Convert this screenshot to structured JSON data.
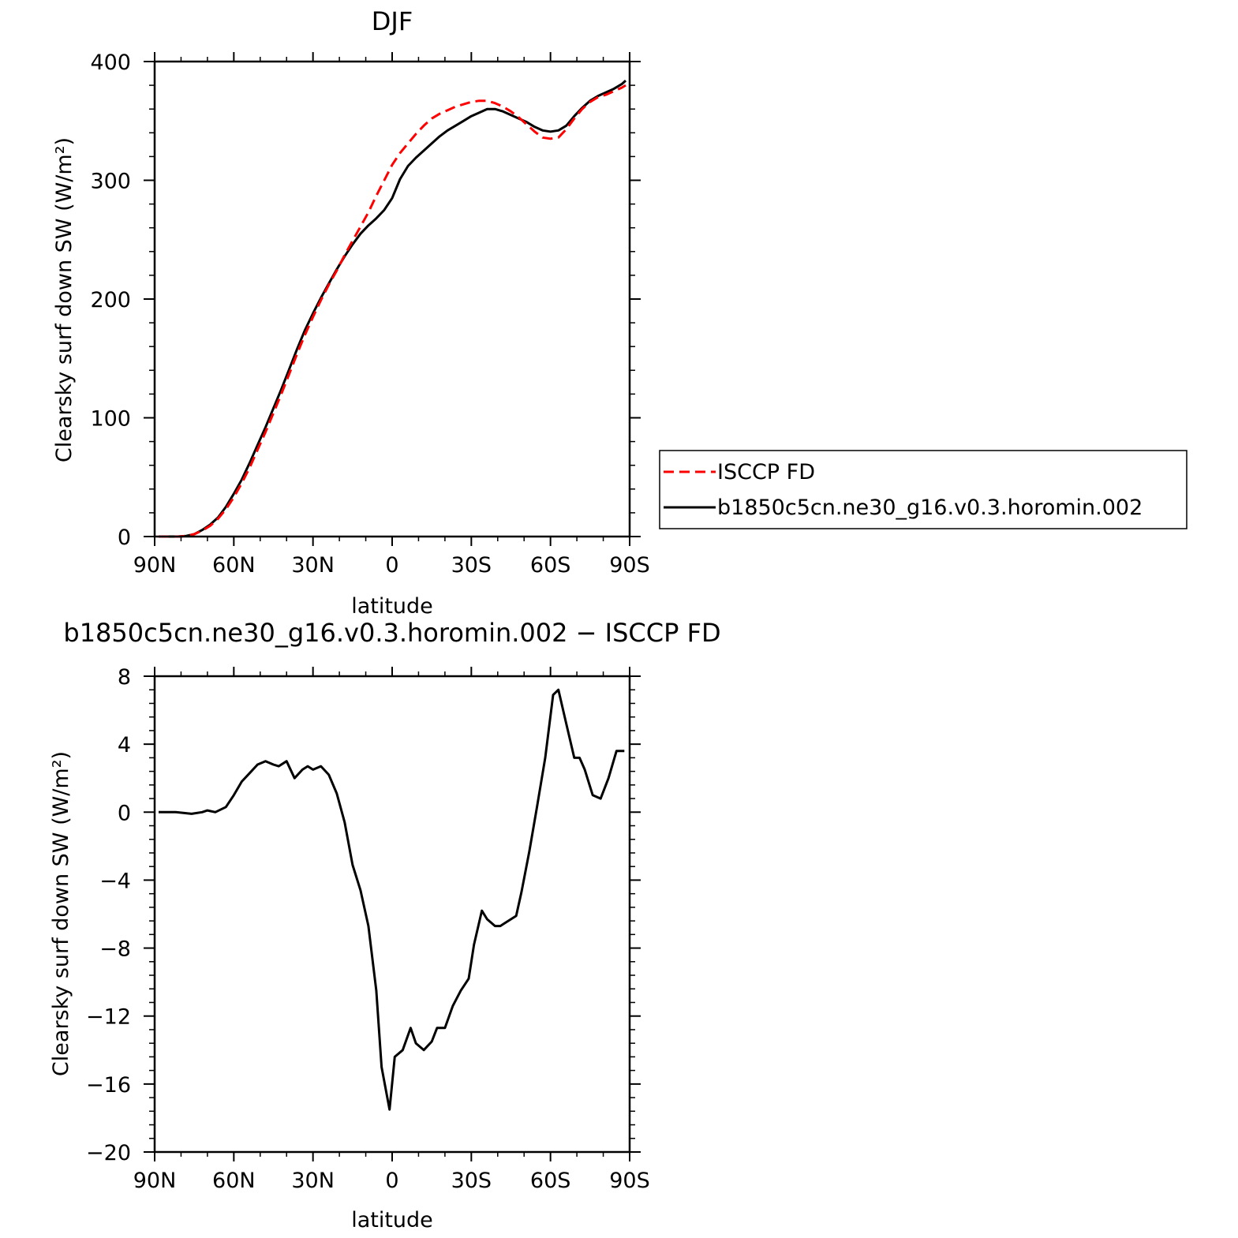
{
  "chart_data": [
    {
      "type": "line",
      "title": "DJF",
      "xlabel": "latitude",
      "ylabel": "Clearsky surf down SW (W/m²)",
      "xlim": [
        90,
        -90
      ],
      "ylim": [
        0,
        400
      ],
      "x_ticks": [
        {
          "value": 90,
          "label": "90N"
        },
        {
          "value": 60,
          "label": "60N"
        },
        {
          "value": 30,
          "label": "30N"
        },
        {
          "value": 0,
          "label": "0"
        },
        {
          "value": -30,
          "label": "30S"
        },
        {
          "value": -60,
          "label": "60S"
        },
        {
          "value": -90,
          "label": "90S"
        }
      ],
      "y_ticks": [
        0,
        100,
        200,
        300,
        400
      ],
      "legend": "right, outside",
      "series": [
        {
          "name": "ISCCP FD",
          "color": "#ff0000",
          "style": "dashed",
          "x": [
            88.5,
            84,
            81,
            78,
            75,
            72,
            69,
            66,
            63,
            60,
            57,
            54,
            51,
            48,
            45,
            42,
            39,
            36,
            33,
            30,
            27,
            24,
            21,
            18,
            15,
            12,
            9,
            6,
            3,
            0,
            -3,
            -6,
            -9,
            -12,
            -15,
            -18,
            -21,
            -24,
            -27,
            -30,
            -33,
            -36,
            -39,
            -42,
            -45,
            -48,
            -51,
            -54,
            -57,
            -60,
            -63,
            -66,
            -69,
            -72,
            -75,
            -78,
            -81,
            -84,
            -87,
            -88.5
          ],
          "values": [
            0,
            0,
            0,
            0.5,
            2,
            5,
            9,
            15,
            23,
            33,
            45,
            58,
            73,
            88,
            104,
            120,
            137,
            154,
            170,
            185,
            199,
            212,
            224,
            237,
            249,
            261,
            273,
            287,
            300,
            313,
            323,
            331,
            339,
            346,
            352,
            356,
            359,
            362,
            364,
            366,
            367,
            367,
            365,
            362,
            358,
            353,
            347,
            341,
            336,
            335,
            336,
            343,
            352,
            360,
            366,
            370,
            372,
            375,
            378,
            380
          ]
        },
        {
          "name": "b1850c5cn.ne30_g16.v0.3.horomin.002",
          "color": "#000000",
          "style": "solid",
          "x": [
            88.5,
            84,
            81,
            78,
            75,
            72,
            69,
            66,
            63,
            60,
            57,
            54,
            51,
            48,
            45,
            42,
            39,
            36,
            33,
            30,
            27,
            24,
            21,
            18,
            15,
            12,
            9,
            6,
            3,
            0,
            -3,
            -6,
            -9,
            -12,
            -15,
            -18,
            -21,
            -24,
            -27,
            -30,
            -33,
            -36,
            -39,
            -42,
            -45,
            -48,
            -51,
            -54,
            -57,
            -60,
            -63,
            -66,
            -69,
            -72,
            -75,
            -78,
            -81,
            -84,
            -87,
            -88.5
          ],
          "values": [
            0,
            0,
            0,
            0.5,
            2,
            5.5,
            10,
            16,
            25,
            36,
            48,
            62,
            77,
            92,
            108,
            124,
            141,
            158,
            174,
            188,
            201,
            213,
            225,
            236,
            246,
            255,
            262,
            268,
            275,
            285,
            301,
            312,
            319,
            325,
            331,
            337,
            342,
            346,
            350,
            354,
            357,
            360,
            360,
            358,
            355,
            352,
            349,
            345,
            342,
            341,
            342,
            346,
            354,
            361,
            367,
            371,
            374,
            377,
            381,
            384
          ]
        }
      ]
    },
    {
      "type": "line",
      "title": "b1850c5cn.ne30_g16.v0.3.horomin.002 − ISCCP FD",
      "xlabel": "latitude",
      "ylabel": "Clearsky surf down SW (W/m²)",
      "xlim": [
        90,
        -90
      ],
      "ylim": [
        -20,
        8
      ],
      "x_ticks": [
        {
          "value": 90,
          "label": "90N"
        },
        {
          "value": 60,
          "label": "60N"
        },
        {
          "value": 30,
          "label": "30N"
        },
        {
          "value": 0,
          "label": "0"
        },
        {
          "value": -30,
          "label": "30S"
        },
        {
          "value": -60,
          "label": "60S"
        },
        {
          "value": -90,
          "label": "90S"
        }
      ],
      "y_ticks": [
        {
          "value": -20,
          "label": "−20"
        },
        {
          "value": -16,
          "label": "−16"
        },
        {
          "value": -12,
          "label": "−12"
        },
        {
          "value": -8,
          "label": "−8"
        },
        {
          "value": -4,
          "label": "−4"
        },
        {
          "value": 0,
          "label": "0"
        },
        {
          "value": 4,
          "label": "4"
        },
        {
          "value": 8,
          "label": "8"
        }
      ],
      "series": [
        {
          "color": "#000000",
          "style": "solid",
          "x": [
            88.5,
            82,
            76,
            72,
            70,
            67,
            63,
            60,
            57,
            54,
            51,
            48,
            45,
            43,
            40,
            37,
            34,
            32,
            30,
            27,
            24,
            21,
            18,
            15,
            12,
            9,
            6,
            4,
            1,
            -1,
            -4,
            -7,
            -9,
            -12,
            -15,
            -17,
            -20,
            -23,
            -26,
            -29,
            -31,
            -34,
            -36,
            -39,
            -41,
            -43,
            -47,
            -49,
            -52,
            -55,
            -58,
            -61,
            -63,
            -66,
            -69,
            -71,
            -73,
            -76,
            -79,
            -82,
            -85,
            -88
          ],
          "values": [
            0,
            0,
            -0.1,
            0,
            0.1,
            0,
            0.3,
            1.0,
            1.8,
            2.3,
            2.8,
            3.0,
            2.8,
            2.7,
            3.0,
            2.0,
            2.5,
            2.7,
            2.5,
            2.7,
            2.2,
            1.1,
            -0.6,
            -3.1,
            -4.6,
            -6.7,
            -10.5,
            -15.0,
            -17.5,
            -14.4,
            -14.0,
            -12.7,
            -13.6,
            -14.0,
            -13.5,
            -12.7,
            -12.7,
            -11.4,
            -10.5,
            -9.8,
            -7.8,
            -5.8,
            -6.3,
            -6.7,
            -6.7,
            -6.5,
            -6.1,
            -4.7,
            -2.3,
            0.4,
            3.2,
            6.9,
            7.2,
            5.2,
            3.2,
            3.2,
            2.5,
            1.0,
            0.8,
            2.0,
            3.6,
            3.6
          ]
        }
      ]
    }
  ]
}
